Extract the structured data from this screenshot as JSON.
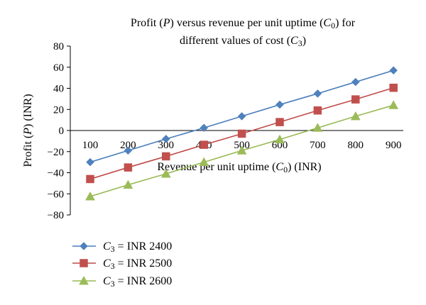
{
  "chart_data": {
    "type": "line",
    "title_line1_parts": [
      "Profit (",
      "P",
      ") versus revenue per unit uptime (",
      "C",
      "0",
      ") for"
    ],
    "title_line2_parts": [
      "different values of cost (",
      "C",
      "3",
      ")"
    ],
    "ylabel_parts": [
      "Profit (",
      "P",
      ") (INR)"
    ],
    "xlabel_parts": [
      "Revenue per unit uptime (",
      "C",
      "0",
      ") (INR)"
    ],
    "x": [
      100,
      200,
      300,
      400,
      500,
      600,
      700,
      800,
      900
    ],
    "y_ticks": [
      80,
      60,
      40,
      20,
      0,
      -20,
      -40,
      -60,
      -80
    ],
    "y_tick_labels": [
      "80",
      "60",
      "40",
      "20",
      "0",
      "−20",
      "−40",
      "−60",
      "−80"
    ],
    "ylim": [
      -80,
      80
    ],
    "grid": false,
    "legend_position": "bottom-left",
    "series": [
      {
        "legend_var": "C",
        "legend_sub": "3",
        "legend_text": " = INR 2400",
        "marker": "diamond",
        "color": "#4a7ebb",
        "marker_color": "#4f81bd",
        "values": [
          -30,
          -19,
          -8,
          2.5,
          13.5,
          24.5,
          35,
          46,
          57
        ]
      },
      {
        "legend_var": "C",
        "legend_sub": "3",
        "legend_text": " = INR 2500",
        "marker": "square",
        "color": "#be4b48",
        "marker_color": "#c0504d",
        "values": [
          -46,
          -35,
          -24.5,
          -13.5,
          -3,
          8,
          19,
          29.5,
          40.5
        ]
      },
      {
        "legend_var": "C",
        "legend_sub": "3",
        "legend_text": " = INR 2600",
        "marker": "triangle",
        "color": "#98b954",
        "marker_color": "#9bbb59",
        "values": [
          -62.5,
          -51.5,
          -41,
          -30,
          -19,
          -8.5,
          2.5,
          13.5,
          24
        ]
      }
    ]
  }
}
